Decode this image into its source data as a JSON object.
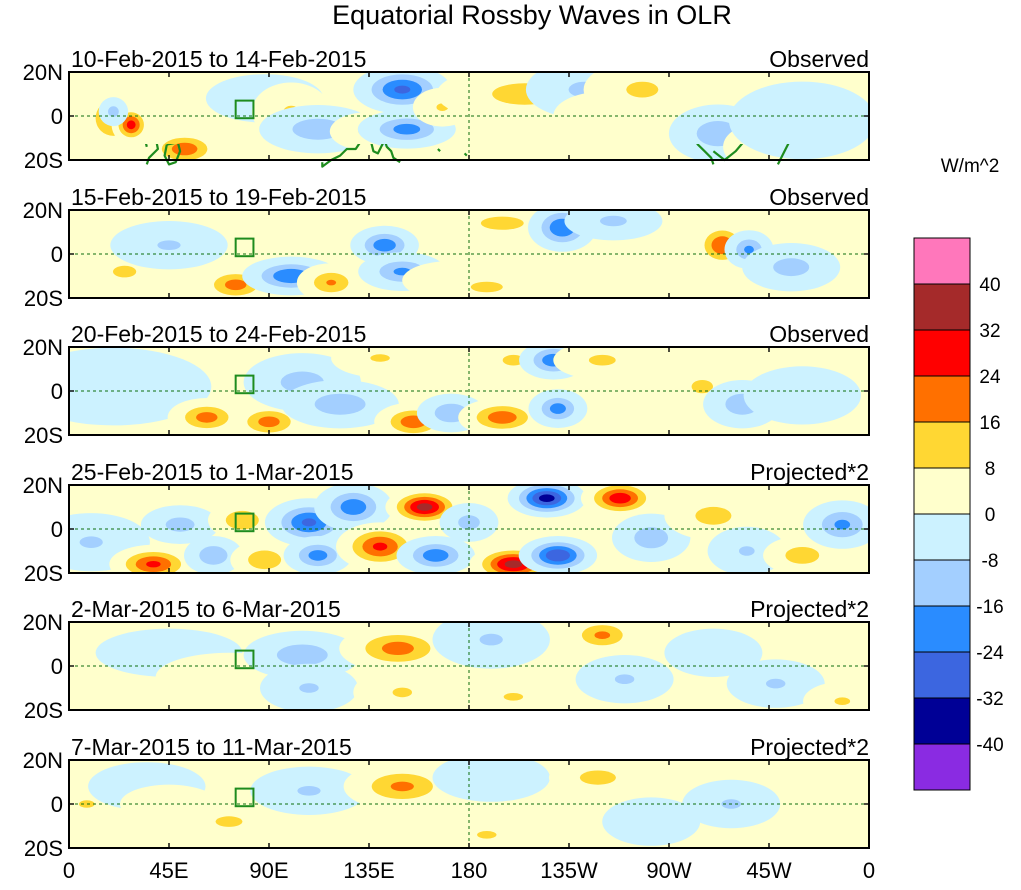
{
  "chart_data": {
    "type": "heatmap",
    "title": "Equatorial Rossby Waves in OLR",
    "units": "W/m^2",
    "x_ticks": [
      "0",
      "45E",
      "90E",
      "135E",
      "180",
      "135W",
      "90W",
      "45W",
      "0"
    ],
    "y_ticks": [
      "20N",
      "0",
      "20S"
    ],
    "lon_range": [
      0,
      360
    ],
    "lat_range": [
      -20,
      20
    ],
    "colorbar": {
      "levels": [
        40,
        32,
        24,
        16,
        8,
        0,
        -8,
        -16,
        -24,
        -32,
        -40
      ],
      "labels": [
        "40",
        "32",
        "24",
        "16",
        "8",
        "0",
        "-8",
        "-16",
        "-24",
        "-32",
        "-40"
      ],
      "colors": [
        "#ff77bb",
        "#a52a2a",
        "#ff0000",
        "#ff7000",
        "#ffd733",
        "#ffffcc",
        "#ccf2ff",
        "#a3cfff",
        "#2a8cff",
        "#3c66e0",
        "#000096",
        "#8a2be2"
      ]
    },
    "panels": [
      {
        "date_range": "10-Feb-2015 to 14-Feb-2015",
        "label": "Observed",
        "kind": "observed",
        "anomalies": [
          {
            "lon": 20,
            "lat": -1,
            "val": 18,
            "sx": 7,
            "sy": 7
          },
          {
            "lon": 28,
            "lat": -4,
            "val": 28,
            "sx": 4,
            "sy": 4
          },
          {
            "lon": 20,
            "lat": 2,
            "val": -12,
            "sx": 3,
            "sy": 3
          },
          {
            "lon": 52,
            "lat": -15,
            "val": 22,
            "sx": 8,
            "sy": 4
          },
          {
            "lon": 62,
            "lat": 8,
            "val": 8,
            "sx": 12,
            "sy": 4
          },
          {
            "lon": 88,
            "lat": 8,
            "val": -8,
            "sx": 12,
            "sy": 5
          },
          {
            "lon": 100,
            "lat": 2,
            "val": 9,
            "sx": 8,
            "sy": 6
          },
          {
            "lon": 112,
            "lat": -6,
            "val": -14,
            "sx": 12,
            "sy": 5
          },
          {
            "lon": 135,
            "lat": -7,
            "val": 10,
            "sx": 8,
            "sy": 4
          },
          {
            "lon": 150,
            "lat": 12,
            "val": -26,
            "sx": 10,
            "sy": 5
          },
          {
            "lon": 152,
            "lat": -6,
            "val": -20,
            "sx": 10,
            "sy": 4
          },
          {
            "lon": 168,
            "lat": 4,
            "val": 9,
            "sx": 6,
            "sy": 4
          },
          {
            "lon": 205,
            "lat": 10,
            "val": 12,
            "sx": 18,
            "sy": 6
          },
          {
            "lon": 232,
            "lat": 12,
            "val": -10,
            "sx": 12,
            "sy": 6
          },
          {
            "lon": 240,
            "lat": 0,
            "val": 8,
            "sx": 10,
            "sy": 5
          },
          {
            "lon": 258,
            "lat": 12,
            "val": 10,
            "sx": 12,
            "sy": 6
          },
          {
            "lon": 292,
            "lat": -8,
            "val": -14,
            "sx": 10,
            "sy": 6
          },
          {
            "lon": 312,
            "lat": -14,
            "val": 8,
            "sx": 8,
            "sy": 5
          },
          {
            "lon": 330,
            "lat": -2,
            "val": -8,
            "sx": 15,
            "sy": 8
          }
        ]
      },
      {
        "date_range": "15-Feb-2015 to 19-Feb-2015",
        "label": "Observed",
        "kind": "observed",
        "anomalies": [
          {
            "lon": 25,
            "lat": -8,
            "val": 9,
            "sx": 12,
            "sy": 6
          },
          {
            "lon": 45,
            "lat": 4,
            "val": -9,
            "sx": 12,
            "sy": 5
          },
          {
            "lon": 75,
            "lat": -14,
            "val": 20,
            "sx": 8,
            "sy": 4
          },
          {
            "lon": 100,
            "lat": -10,
            "val": -24,
            "sx": 10,
            "sy": 4
          },
          {
            "lon": 118,
            "lat": -13,
            "val": 17,
            "sx": 7,
            "sy": 4
          },
          {
            "lon": 142,
            "lat": 4,
            "val": -22,
            "sx": 7,
            "sy": 4
          },
          {
            "lon": 150,
            "lat": -8,
            "val": -18,
            "sx": 9,
            "sy": 4
          },
          {
            "lon": 172,
            "lat": -12,
            "val": 9,
            "sx": 10,
            "sy": 4
          },
          {
            "lon": 188,
            "lat": -15,
            "val": 10,
            "sx": 12,
            "sy": 4
          },
          {
            "lon": 195,
            "lat": 14,
            "val": 10,
            "sx": 16,
            "sy": 5
          },
          {
            "lon": 222,
            "lat": 12,
            "val": -24,
            "sx": 7,
            "sy": 5
          },
          {
            "lon": 245,
            "lat": 15,
            "val": -10,
            "sx": 10,
            "sy": 4
          },
          {
            "lon": 294,
            "lat": 4,
            "val": 24,
            "sx": 6,
            "sy": 5
          },
          {
            "lon": 306,
            "lat": 2,
            "val": -18,
            "sx": 5,
            "sy": 4
          },
          {
            "lon": 325,
            "lat": -6,
            "val": -12,
            "sx": 10,
            "sy": 5
          }
        ]
      },
      {
        "date_range": "20-Feb-2015 to 24-Feb-2015",
        "label": "Observed",
        "kind": "observed",
        "anomalies": [
          {
            "lon": 20,
            "lat": 2,
            "val": -6,
            "sx": 20,
            "sy": 8
          },
          {
            "lon": 62,
            "lat": -12,
            "val": 20,
            "sx": 8,
            "sy": 4
          },
          {
            "lon": 90,
            "lat": -14,
            "val": 20,
            "sx": 8,
            "sy": 4
          },
          {
            "lon": 105,
            "lat": 4,
            "val": -12,
            "sx": 12,
            "sy": 6
          },
          {
            "lon": 122,
            "lat": -6,
            "val": -14,
            "sx": 12,
            "sy": 5
          },
          {
            "lon": 140,
            "lat": 15,
            "val": 9,
            "sx": 10,
            "sy": 4
          },
          {
            "lon": 155,
            "lat": -14,
            "val": 22,
            "sx": 8,
            "sy": 4
          },
          {
            "lon": 172,
            "lat": -10,
            "val": -16,
            "sx": 7,
            "sy": 4
          },
          {
            "lon": 195,
            "lat": -12,
            "val": 22,
            "sx": 9,
            "sy": 4
          },
          {
            "lon": 200,
            "lat": 14,
            "val": 10,
            "sx": 8,
            "sy": 4
          },
          {
            "lon": 218,
            "lat": 14,
            "val": -22,
            "sx": 7,
            "sy": 4
          },
          {
            "lon": 220,
            "lat": -8,
            "val": -20,
            "sx": 6,
            "sy": 4
          },
          {
            "lon": 240,
            "lat": 14,
            "val": 10,
            "sx": 10,
            "sy": 4
          },
          {
            "lon": 258,
            "lat": -8,
            "val": 8,
            "sx": 10,
            "sy": 5
          },
          {
            "lon": 285,
            "lat": 2,
            "val": 10,
            "sx": 8,
            "sy": 5
          },
          {
            "lon": 303,
            "lat": -6,
            "val": -14,
            "sx": 8,
            "sy": 5
          },
          {
            "lon": 330,
            "lat": -2,
            "val": -8,
            "sx": 12,
            "sy": 6
          }
        ]
      },
      {
        "date_range": "25-Feb-2015 to 1-Mar-2015",
        "label": "Projected*2",
        "kind": "projected",
        "anomalies": [
          {
            "lon": 10,
            "lat": -6,
            "val": -9,
            "sx": 12,
            "sy": 6
          },
          {
            "lon": 38,
            "lat": -16,
            "val": 26,
            "sx": 9,
            "sy": 4
          },
          {
            "lon": 50,
            "lat": 2,
            "val": -12,
            "sx": 8,
            "sy": 4
          },
          {
            "lon": 65,
            "lat": -12,
            "val": -16,
            "sx": 6,
            "sy": 4
          },
          {
            "lon": 78,
            "lat": 4,
            "val": 16,
            "sx": 7,
            "sy": 4
          },
          {
            "lon": 88,
            "lat": -14,
            "val": 16,
            "sx": 7,
            "sy": 4
          },
          {
            "lon": 108,
            "lat": 3,
            "val": -26,
            "sx": 9,
            "sy": 5
          },
          {
            "lon": 112,
            "lat": -12,
            "val": -20,
            "sx": 7,
            "sy": 4
          },
          {
            "lon": 128,
            "lat": 10,
            "val": -22,
            "sx": 8,
            "sy": 5
          },
          {
            "lon": 140,
            "lat": -8,
            "val": 26,
            "sx": 9,
            "sy": 5
          },
          {
            "lon": 160,
            "lat": 10,
            "val": 36,
            "sx": 8,
            "sy": 4
          },
          {
            "lon": 165,
            "lat": -12,
            "val": -22,
            "sx": 8,
            "sy": 4
          },
          {
            "lon": 180,
            "lat": 3,
            "val": -12,
            "sx": 6,
            "sy": 4
          },
          {
            "lon": 200,
            "lat": -16,
            "val": 36,
            "sx": 9,
            "sy": 4
          },
          {
            "lon": 215,
            "lat": 14,
            "val": -36,
            "sx": 8,
            "sy": 4
          },
          {
            "lon": 220,
            "lat": -12,
            "val": -32,
            "sx": 8,
            "sy": 4
          },
          {
            "lon": 248,
            "lat": 14,
            "val": 30,
            "sx": 8,
            "sy": 4
          },
          {
            "lon": 262,
            "lat": -4,
            "val": -14,
            "sx": 8,
            "sy": 5
          },
          {
            "lon": 290,
            "lat": 6,
            "val": 12,
            "sx": 10,
            "sy": 5
          },
          {
            "lon": 305,
            "lat": -10,
            "val": -9,
            "sx": 8,
            "sy": 5
          },
          {
            "lon": 330,
            "lat": -12,
            "val": 14,
            "sx": 8,
            "sy": 4
          },
          {
            "lon": 348,
            "lat": 2,
            "val": -18,
            "sx": 8,
            "sy": 5
          }
        ]
      },
      {
        "date_range": "2-Mar-2015 to 6-Mar-2015",
        "label": "Projected*2",
        "kind": "projected",
        "anomalies": [
          {
            "lon": 15,
            "lat": 0,
            "val": 8,
            "sx": 12,
            "sy": 4
          },
          {
            "lon": 45,
            "lat": 6,
            "val": -8,
            "sx": 15,
            "sy": 5
          },
          {
            "lon": 72,
            "lat": -5,
            "val": 8,
            "sx": 15,
            "sy": 5
          },
          {
            "lon": 105,
            "lat": 5,
            "val": -14,
            "sx": 12,
            "sy": 5
          },
          {
            "lon": 108,
            "lat": -10,
            "val": -9,
            "sx": 10,
            "sy": 5
          },
          {
            "lon": 148,
            "lat": 8,
            "val": 20,
            "sx": 12,
            "sy": 5
          },
          {
            "lon": 150,
            "lat": -12,
            "val": 9,
            "sx": 10,
            "sy": 5
          },
          {
            "lon": 190,
            "lat": 12,
            "val": -9,
            "sx": 12,
            "sy": 6
          },
          {
            "lon": 200,
            "lat": -14,
            "val": 9,
            "sx": 10,
            "sy": 4
          },
          {
            "lon": 240,
            "lat": 14,
            "val": 18,
            "sx": 8,
            "sy": 4
          },
          {
            "lon": 250,
            "lat": -6,
            "val": -9,
            "sx": 10,
            "sy": 5
          },
          {
            "lon": 290,
            "lat": 6,
            "val": -8,
            "sx": 10,
            "sy": 5
          },
          {
            "lon": 318,
            "lat": -8,
            "val": -9,
            "sx": 10,
            "sy": 5
          },
          {
            "lon": 348,
            "lat": -16,
            "val": 9,
            "sx": 8,
            "sy": 4
          }
        ]
      },
      {
        "date_range": "7-Mar-2015 to 11-Mar-2015",
        "label": "Projected*2",
        "kind": "projected",
        "anomalies": [
          {
            "lon": 8,
            "lat": 0,
            "val": 9,
            "sx": 8,
            "sy": 4
          },
          {
            "lon": 35,
            "lat": 8,
            "val": -8,
            "sx": 12,
            "sy": 5
          },
          {
            "lon": 45,
            "lat": 0,
            "val": 8,
            "sx": 10,
            "sy": 4
          },
          {
            "lon": 72,
            "lat": -8,
            "val": 10,
            "sx": 10,
            "sy": 4
          },
          {
            "lon": 108,
            "lat": 6,
            "val": -9,
            "sx": 12,
            "sy": 5
          },
          {
            "lon": 150,
            "lat": 8,
            "val": 18,
            "sx": 12,
            "sy": 5
          },
          {
            "lon": 188,
            "lat": -14,
            "val": 9,
            "sx": 10,
            "sy": 4
          },
          {
            "lon": 190,
            "lat": 12,
            "val": -8,
            "sx": 12,
            "sy": 5
          },
          {
            "lon": 238,
            "lat": 12,
            "val": 12,
            "sx": 10,
            "sy": 4
          },
          {
            "lon": 262,
            "lat": -8,
            "val": -8,
            "sx": 10,
            "sy": 5
          },
          {
            "lon": 298,
            "lat": 0,
            "val": -9,
            "sx": 10,
            "sy": 5
          }
        ]
      }
    ]
  }
}
